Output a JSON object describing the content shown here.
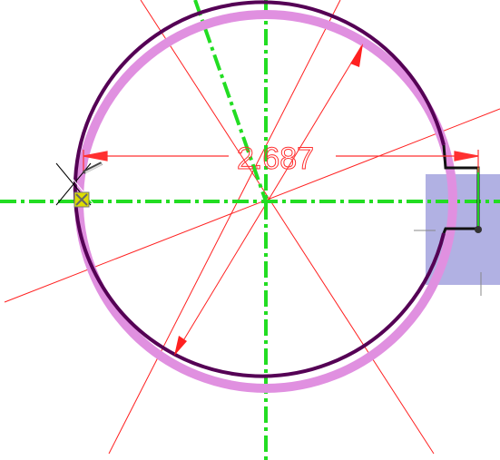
{
  "sketch": {
    "dimension_label": "2.687",
    "colors": {
      "background": "#ffffff",
      "circle_edge": "#550055",
      "circle_highlight": "#e090e0",
      "centerline": "#22dd22",
      "construction_line": "#ff2020",
      "dimension": "#ff3030",
      "selection_fill": "#a8a8e0",
      "snap_marker": "#dddd00",
      "cursor": "#000000"
    },
    "icons": [
      "crosshair-cursor-icon",
      "pencil-icon",
      "snap-point-icon",
      "endpoint-dot-icon"
    ]
  }
}
